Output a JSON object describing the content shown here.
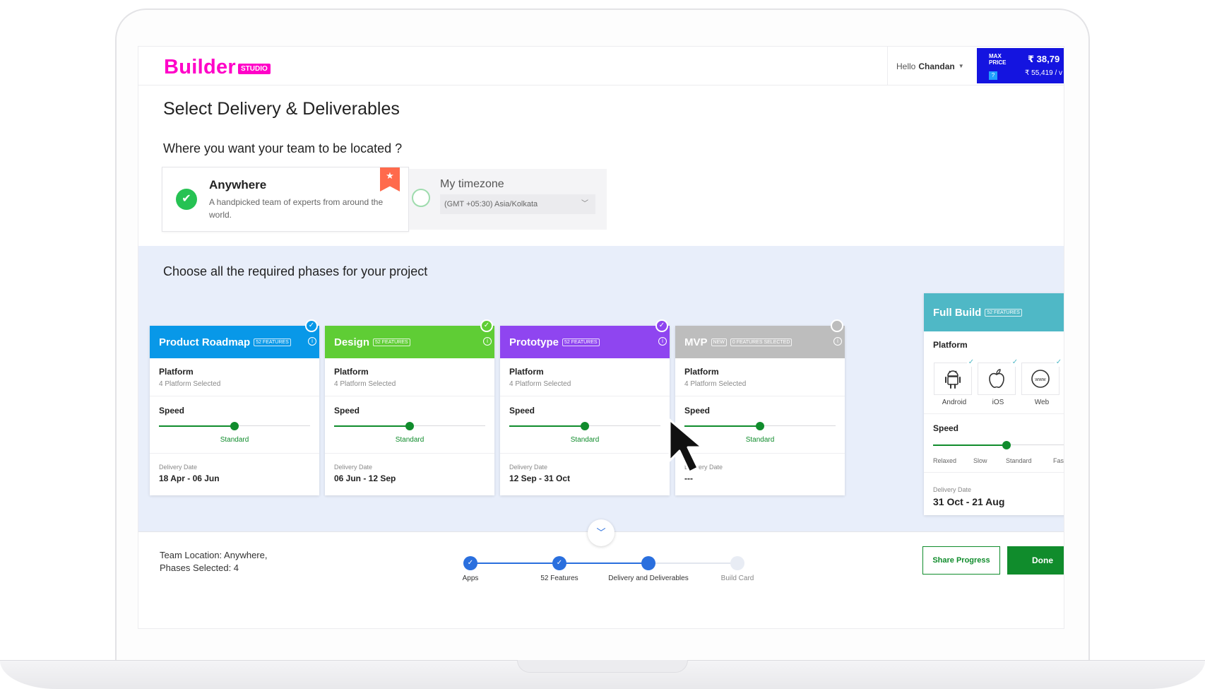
{
  "header": {
    "logo_text": "Builder",
    "logo_badge": "STUDIO",
    "greeting": "Hello",
    "user_name": "Chandan",
    "price": {
      "label_line1": "MAX",
      "label_line2": "PRICE",
      "help": "?",
      "max_price": "₹ 38,79",
      "secondary_price": "₹ 55,419 / v"
    }
  },
  "page": {
    "title": "Select Delivery & Deliverables",
    "location_question": "Where you want your team to be located ?",
    "location_options": {
      "anywhere_title": "Anywhere",
      "anywhere_desc": "A handpicked team of experts from around the world.",
      "timezone_title": "My timezone",
      "timezone_value": "(GMT +05:30) Asia/Kolkata"
    },
    "phases_title": "Choose all the required phases for your project"
  },
  "phases": [
    {
      "title": "Product Roadmap",
      "badge": "52 FEATURES",
      "color": "#0898e8",
      "platform_label": "Platform",
      "platform_sub": "4 Platform Selected",
      "speed_label": "Speed",
      "speed_value": "Standard",
      "speed_level": 0.5,
      "date_label": "Delivery Date",
      "date_value": "18 Apr - 06 Jun",
      "selected": true
    },
    {
      "title": "Design",
      "badge": "52 FEATURES",
      "color": "#5fcd35",
      "platform_label": "Platform",
      "platform_sub": "4 Platform Selected",
      "speed_label": "Speed",
      "speed_value": "Standard",
      "speed_level": 0.5,
      "date_label": "Delivery Date",
      "date_value": "06 Jun - 12 Sep",
      "selected": true
    },
    {
      "title": "Prototype",
      "badge": "52 FEATURES",
      "color": "#8f45f0",
      "platform_label": "Platform",
      "platform_sub": "4 Platform Selected",
      "speed_label": "Speed",
      "speed_value": "Standard",
      "speed_level": 0.5,
      "date_label": "Delivery Date",
      "date_value": "12 Sep - 31 Oct",
      "selected": true
    },
    {
      "title": "MVP",
      "badge": "0 FEATURES SELECTED",
      "new_badge": "NEW",
      "color": "#bdbdbd",
      "platform_label": "Platform",
      "platform_sub": "4 Platform Selected",
      "speed_label": "Speed",
      "speed_value": "Standard",
      "speed_level": 0.5,
      "date_label": "Delivery Date",
      "date_value": "---",
      "selected": false
    }
  ],
  "full_build": {
    "title": "Full Build",
    "badge": "52 FEATURES",
    "color": "#4fb8c6",
    "platform_label": "Platform",
    "platforms": [
      "Android",
      "iOS",
      "Web"
    ],
    "web_icon_text": "www",
    "speed_label": "Speed",
    "speed_options": [
      "Relaxed",
      "Slow",
      "Standard",
      "Fas"
    ],
    "speed_level": 0.5,
    "date_label": "Delivery Date",
    "date_value": "31 Oct - 21 Aug"
  },
  "footer": {
    "summary_line1": "Team Location: Anywhere,",
    "summary_line2": "Phases Selected: 4",
    "steps": [
      {
        "label": "Apps",
        "done": true
      },
      {
        "label": "52 Features",
        "done": true
      },
      {
        "label": "Delivery and Deliverables",
        "done": true,
        "current": true
      },
      {
        "label": "Build Card",
        "done": false
      }
    ],
    "share_label": "Share Progress",
    "done_label": "Done"
  }
}
